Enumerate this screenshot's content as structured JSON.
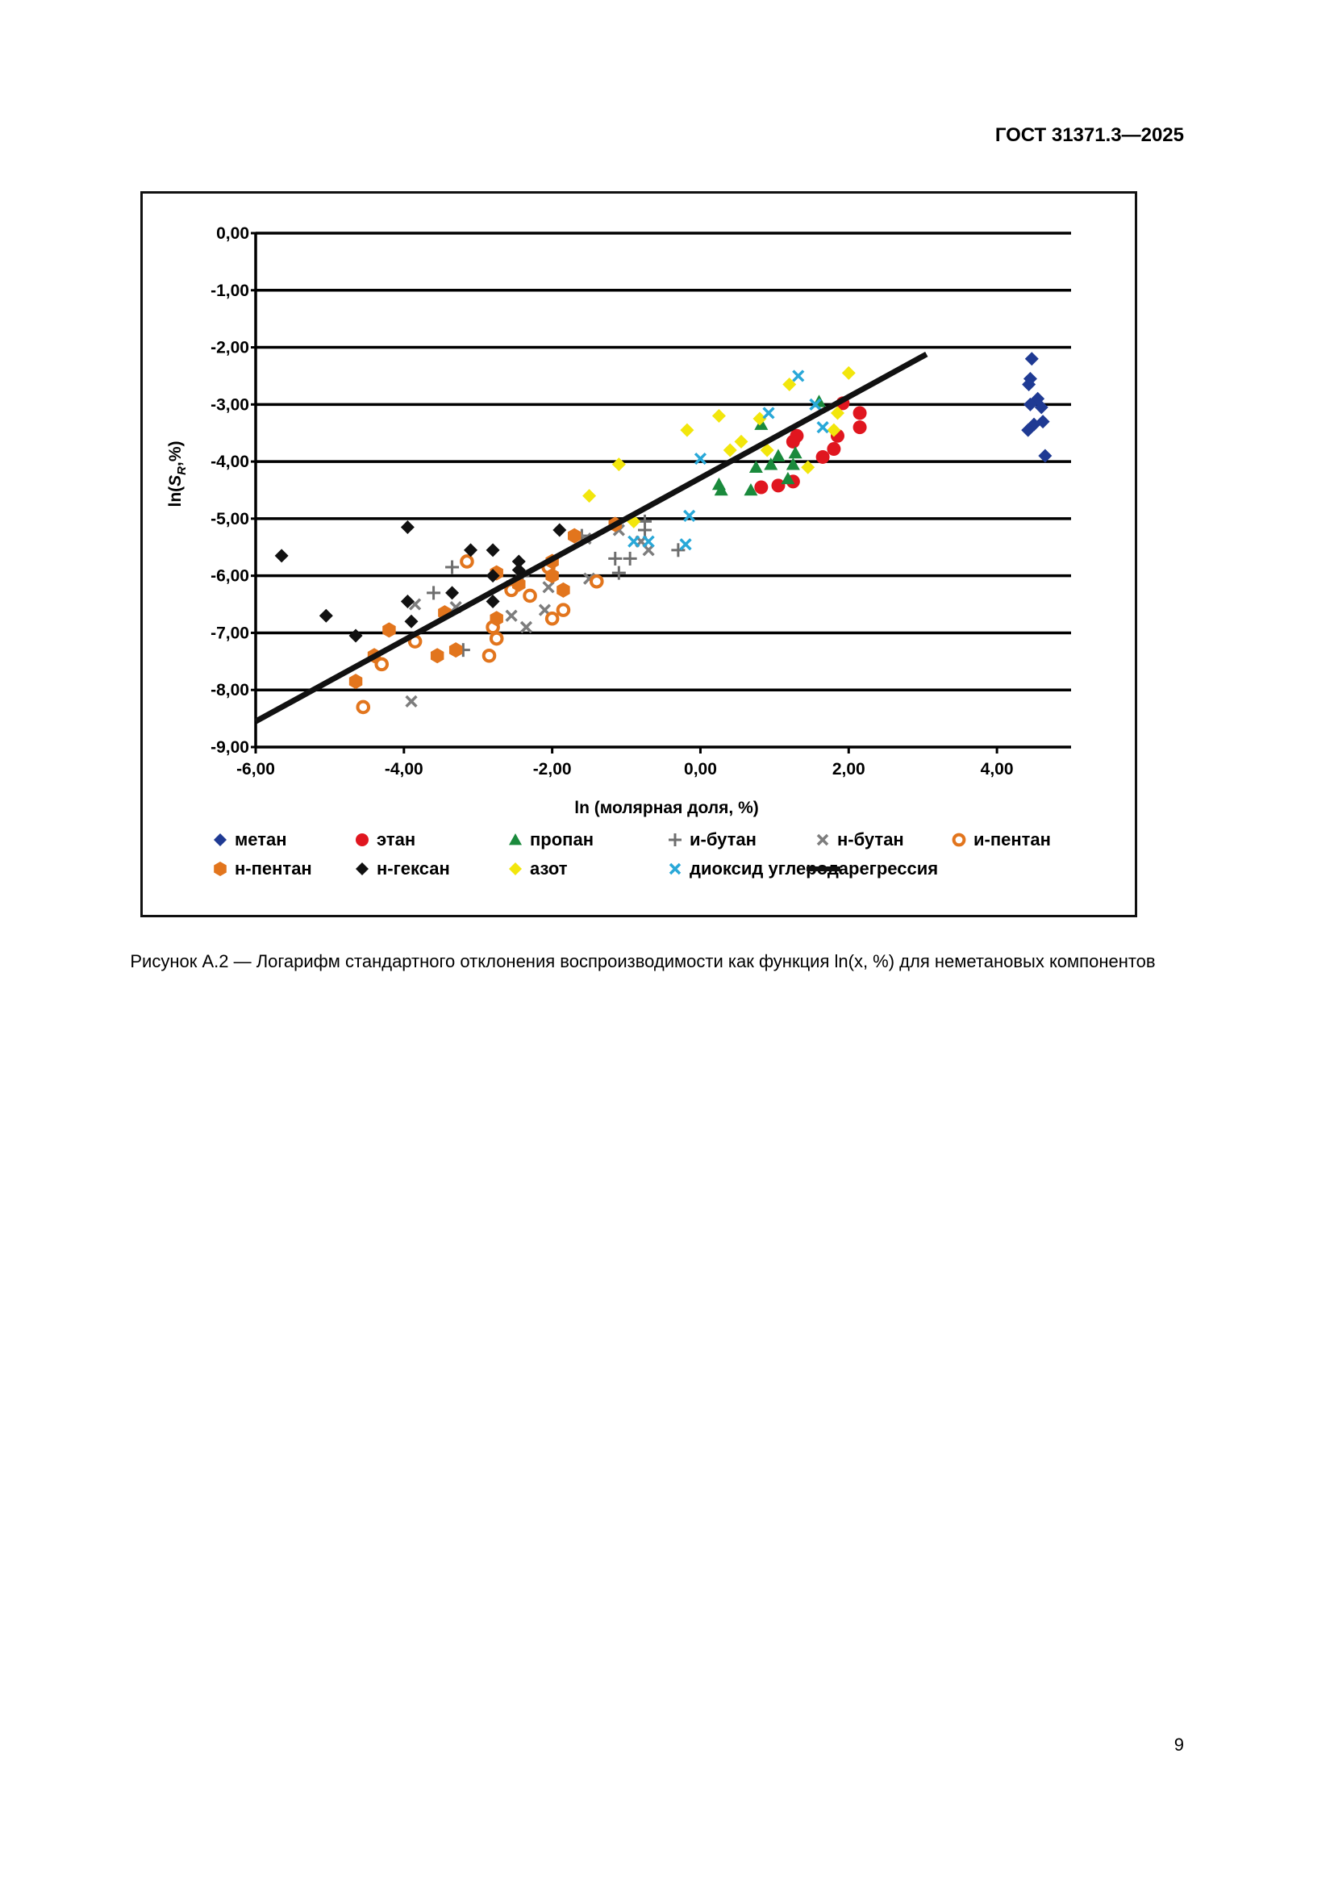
{
  "document": {
    "header": "ГОСТ 31371.3—2025",
    "caption": "Рисунок А.2 — Логарифм стандартного отклонения воспроизводимости как функция ln(x, %) для неметановых компонентов",
    "page_number": "9"
  },
  "chart_data": {
    "type": "scatter",
    "title": "",
    "xlabel": "ln (молярная доля, %)",
    "ylabel": "ln(S_R,%)",
    "ylabel_parts": {
      "prefix": "ln(",
      "symbol": "S",
      "subscript": "R",
      "suffix": ",%)"
    },
    "xlim": [
      -6,
      5
    ],
    "ylim": [
      -9,
      0
    ],
    "x_ticks": [
      -6,
      -4,
      -2,
      0,
      2,
      4
    ],
    "x_tick_labels": [
      "-6,00",
      "-4,00",
      "-2,00",
      "0,00",
      "2,00",
      "4,00"
    ],
    "y_ticks": [
      0,
      -1,
      -2,
      -3,
      -4,
      -5,
      -6,
      -7,
      -8,
      -9
    ],
    "y_tick_labels": [
      "0,00",
      "-1,00",
      "-2,00",
      "-3,00",
      "-4,00",
      "-5,00",
      "-6,00",
      "-7,00",
      "-8,00",
      "-9,00"
    ],
    "grid": "horizontal",
    "legend_position": "bottom",
    "series": [
      {
        "name": "метан",
        "marker": "diamond",
        "color": "#1f3a93",
        "points": [
          [
            4.47,
            -2.2
          ],
          [
            4.45,
            -2.55
          ],
          [
            4.43,
            -2.65
          ],
          [
            4.55,
            -2.9
          ],
          [
            4.45,
            -3.0
          ],
          [
            4.6,
            -3.05
          ],
          [
            4.5,
            -3.35
          ],
          [
            4.42,
            -3.45
          ],
          [
            4.62,
            -3.3
          ],
          [
            4.65,
            -3.9
          ]
        ]
      },
      {
        "name": "этан",
        "marker": "circle",
        "color": "#e0161f",
        "points": [
          [
            1.92,
            -2.98
          ],
          [
            2.15,
            -3.15
          ],
          [
            1.3,
            -3.55
          ],
          [
            1.25,
            -3.65
          ],
          [
            1.85,
            -3.55
          ],
          [
            2.15,
            -3.4
          ],
          [
            1.8,
            -3.78
          ],
          [
            1.65,
            -3.92
          ],
          [
            0.82,
            -4.45
          ],
          [
            1.05,
            -4.42
          ],
          [
            1.25,
            -4.35
          ]
        ]
      },
      {
        "name": "пропан",
        "marker": "triangle",
        "color": "#1a8a3c",
        "points": [
          [
            1.6,
            -2.95
          ],
          [
            0.82,
            -3.35
          ],
          [
            1.05,
            -3.9
          ],
          [
            1.28,
            -3.85
          ],
          [
            0.95,
            -4.05
          ],
          [
            0.75,
            -4.1
          ],
          [
            1.18,
            -4.3
          ],
          [
            0.25,
            -4.4
          ],
          [
            0.28,
            -4.5
          ],
          [
            0.68,
            -4.5
          ],
          [
            1.25,
            -4.05
          ]
        ]
      },
      {
        "name": "и-бутан",
        "marker": "plus",
        "color": "#6e6e6e",
        "points": [
          [
            -3.35,
            -5.85
          ],
          [
            -3.6,
            -6.3
          ],
          [
            -3.2,
            -7.3
          ],
          [
            -2.6,
            -6.2
          ],
          [
            -2.4,
            -6.0
          ],
          [
            -1.6,
            -5.3
          ],
          [
            -1.15,
            -5.7
          ],
          [
            -1.1,
            -5.95
          ],
          [
            -0.95,
            -5.7
          ],
          [
            -0.75,
            -5.2
          ],
          [
            -0.3,
            -5.55
          ],
          [
            -0.75,
            -5.05
          ]
        ]
      },
      {
        "name": "н-бутан",
        "marker": "x",
        "color": "#7d7d7d",
        "points": [
          [
            -3.9,
            -8.2
          ],
          [
            -3.85,
            -6.5
          ],
          [
            -3.3,
            -6.55
          ],
          [
            -2.55,
            -6.7
          ],
          [
            -2.35,
            -6.9
          ],
          [
            -2.1,
            -6.6
          ],
          [
            -2.05,
            -6.2
          ],
          [
            -1.55,
            -5.35
          ],
          [
            -1.5,
            -6.05
          ],
          [
            -1.1,
            -5.2
          ],
          [
            -0.7,
            -5.55
          ],
          [
            -0.8,
            -5.4
          ]
        ]
      },
      {
        "name": "и-пентан",
        "marker": "ring",
        "color": "#e2751d",
        "points": [
          [
            -3.15,
            -5.75
          ],
          [
            -2.8,
            -6.9
          ],
          [
            -2.75,
            -7.1
          ],
          [
            -2.85,
            -7.4
          ],
          [
            -2.55,
            -6.25
          ],
          [
            -2.3,
            -6.35
          ],
          [
            -2.05,
            -5.85
          ],
          [
            -2.0,
            -6.75
          ],
          [
            -1.85,
            -6.6
          ],
          [
            -1.4,
            -6.1
          ],
          [
            -3.85,
            -7.15
          ],
          [
            -4.3,
            -7.55
          ],
          [
            -4.55,
            -8.3
          ]
        ]
      },
      {
        "name": "н-пентан",
        "marker": "hexagon",
        "color": "#e2751d",
        "points": [
          [
            -4.2,
            -6.95
          ],
          [
            -4.4,
            -7.4
          ],
          [
            -4.65,
            -7.85
          ],
          [
            -3.55,
            -7.4
          ],
          [
            -3.3,
            -7.3
          ],
          [
            -3.45,
            -6.65
          ],
          [
            -2.75,
            -6.75
          ],
          [
            -2.75,
            -5.95
          ],
          [
            -2.45,
            -6.15
          ],
          [
            -2.0,
            -5.75
          ],
          [
            -2.0,
            -6.0
          ],
          [
            -1.85,
            -6.25
          ],
          [
            -1.7,
            -5.3
          ],
          [
            -1.15,
            -5.1
          ]
        ]
      },
      {
        "name": "н-гексан",
        "marker": "diamond",
        "color": "#111111",
        "points": [
          [
            -5.65,
            -5.65
          ],
          [
            -5.05,
            -6.7
          ],
          [
            -4.65,
            -7.05
          ],
          [
            -3.95,
            -5.15
          ],
          [
            -3.95,
            -6.45
          ],
          [
            -3.9,
            -6.8
          ],
          [
            -3.35,
            -6.3
          ],
          [
            -3.1,
            -5.55
          ],
          [
            -2.8,
            -6.0
          ],
          [
            -2.8,
            -6.45
          ],
          [
            -2.8,
            -5.55
          ],
          [
            -2.45,
            -5.75
          ],
          [
            -2.45,
            -5.9
          ],
          [
            -1.9,
            -5.2
          ]
        ]
      },
      {
        "name": "азот",
        "marker": "diamond",
        "color": "#f2e60c",
        "points": [
          [
            2.0,
            -2.45
          ],
          [
            1.2,
            -2.65
          ],
          [
            0.8,
            -3.25
          ],
          [
            0.25,
            -3.2
          ],
          [
            1.85,
            -3.15
          ],
          [
            -0.18,
            -3.45
          ],
          [
            0.55,
            -3.65
          ],
          [
            0.4,
            -3.8
          ],
          [
            0.9,
            -3.8
          ],
          [
            1.8,
            -3.45
          ],
          [
            1.45,
            -4.1
          ],
          [
            -1.1,
            -4.05
          ],
          [
            -1.5,
            -4.6
          ],
          [
            -0.9,
            -5.05
          ]
        ]
      },
      {
        "name": "диоксид углерода",
        "marker": "x",
        "color": "#29a8d8",
        "points": [
          [
            1.32,
            -2.5
          ],
          [
            1.55,
            -3.0
          ],
          [
            0.92,
            -3.15
          ],
          [
            1.65,
            -3.4
          ],
          [
            0.0,
            -3.95
          ],
          [
            -0.15,
            -4.95
          ],
          [
            -0.9,
            -5.4
          ],
          [
            -0.7,
            -5.4
          ],
          [
            -0.2,
            -5.45
          ]
        ]
      },
      {
        "name": "регрессия",
        "marker": "line",
        "color": "#111111",
        "line": [
          [
            -6.0,
            -8.55
          ],
          [
            3.05,
            -2.12
          ]
        ]
      }
    ]
  }
}
